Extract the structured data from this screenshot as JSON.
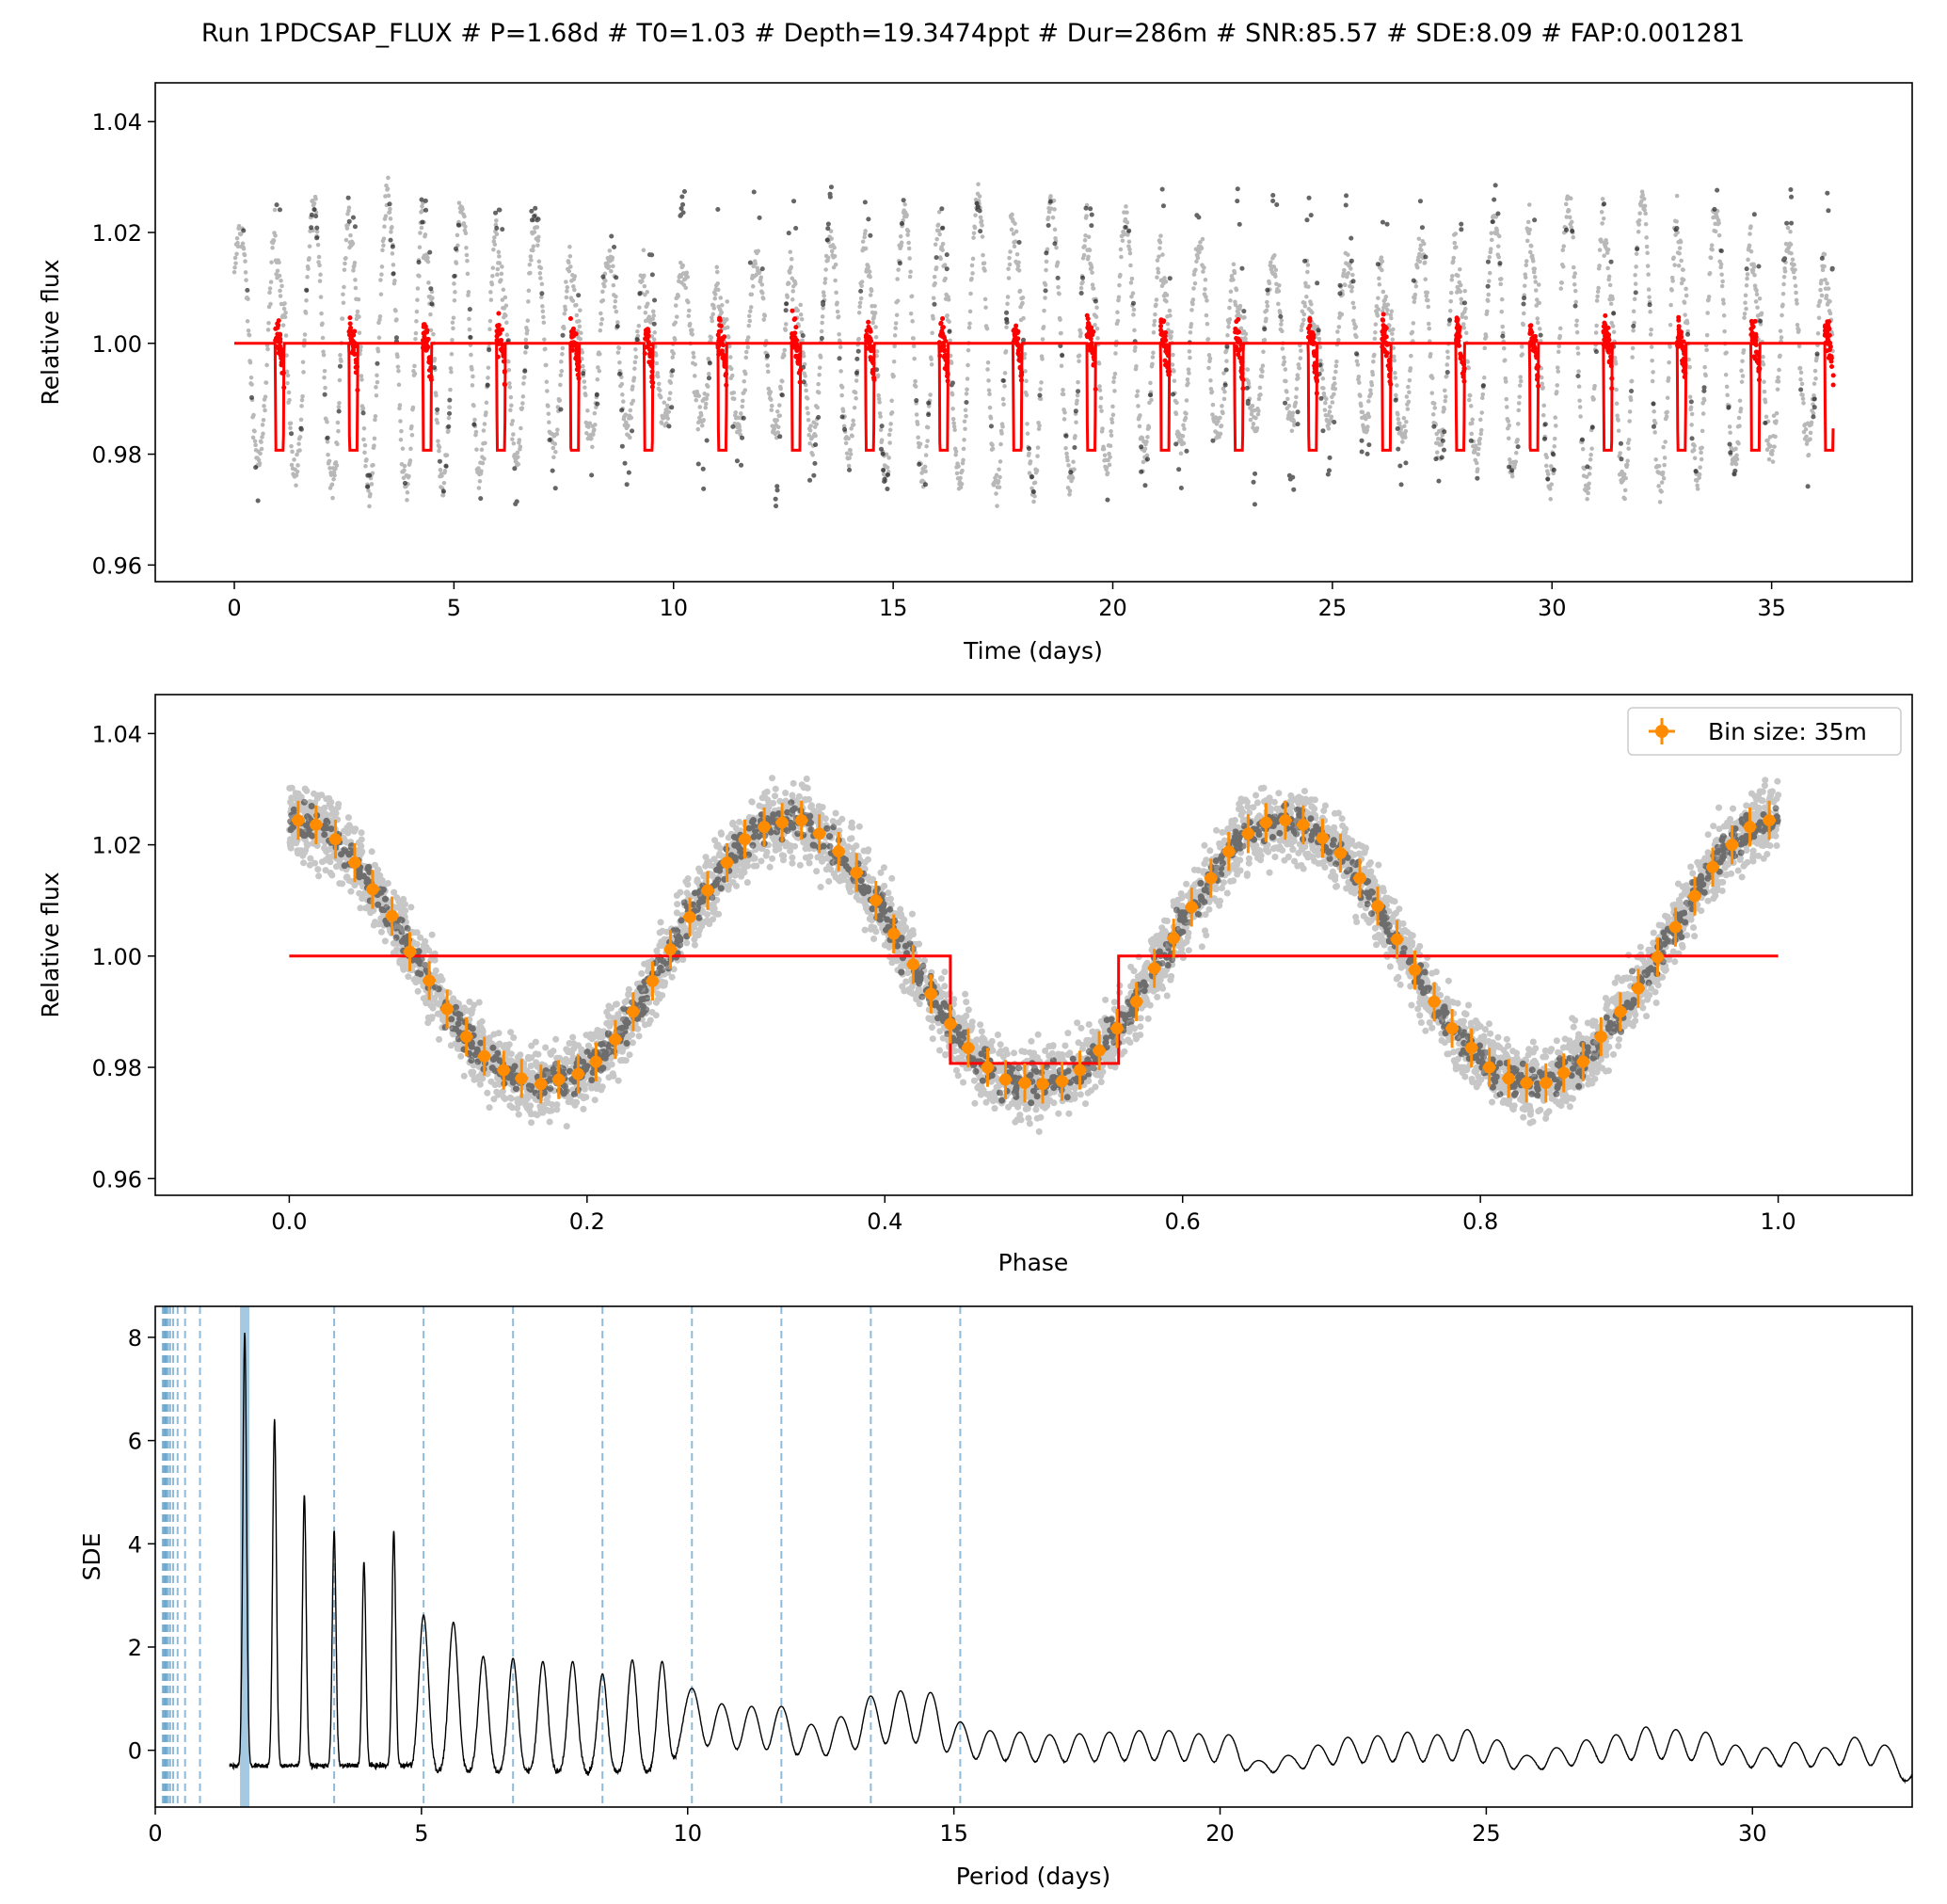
{
  "figure_title": "Run 1PDCSAP_FLUX # P=1.68d # T0=1.03 # Depth=19.3474ppt # Dur=286m # SNR:85.57 # SDE:8.09 # FAP:0.001281",
  "chart_data": [
    {
      "type": "scatter",
      "panel": "time-series",
      "xlabel": "Time (days)",
      "ylabel": "Relative flux",
      "xlim": [
        -1.8,
        38.2
      ],
      "ylim": [
        0.957,
        1.047
      ],
      "xticks": [
        "0",
        "5",
        "10",
        "15",
        "20",
        "25",
        "30",
        "35"
      ],
      "yticks": [
        "0.96",
        "0.98",
        "1.00",
        "1.02",
        "1.04"
      ],
      "grid": false,
      "series": [
        {
          "kind": "points",
          "color": "#000000",
          "x_range": [
            0,
            36.4
          ],
          "sinusoid_period_days": 0.84,
          "sinusoid_amplitude": 0.025,
          "baseline": 1.0
        },
        {
          "kind": "transit-model",
          "color": "#ff0000",
          "period_days": 1.68,
          "t0": 1.03,
          "duration_days": 0.199,
          "depth": 0.0193,
          "baseline": 1.0
        }
      ]
    },
    {
      "type": "scatter",
      "panel": "phase-folded",
      "xlabel": "Phase",
      "ylabel": "Relative flux",
      "xlim": [
        -0.09,
        1.09
      ],
      "ylim": [
        0.957,
        1.047
      ],
      "xticks": [
        "0.0",
        "0.2",
        "0.4",
        "0.6",
        "0.8",
        "1.0"
      ],
      "yticks": [
        "0.96",
        "0.98",
        "1.00",
        "1.02",
        "1.04"
      ],
      "legend": {
        "label": "Bin size: 35m",
        "placement": "top-right"
      },
      "grid": false,
      "series": [
        {
          "kind": "points",
          "color": "#000000"
        },
        {
          "kind": "model",
          "color": "#ff0000",
          "x": [
            0,
            0.444,
            0.444,
            0.557,
            0.557,
            1.0
          ],
          "y": [
            1.0,
            1.0,
            0.9807,
            0.9807,
            1.0,
            1.0
          ]
        },
        {
          "kind": "binned",
          "color": "#ff8c00",
          "name": "Bin size: 35m",
          "x": [
            0.006,
            0.018,
            0.031,
            0.044,
            0.056,
            0.069,
            0.081,
            0.094,
            0.106,
            0.119,
            0.131,
            0.144,
            0.156,
            0.169,
            0.181,
            0.194,
            0.206,
            0.219,
            0.231,
            0.244,
            0.256,
            0.269,
            0.281,
            0.294,
            0.306,
            0.319,
            0.331,
            0.344,
            0.356,
            0.369,
            0.381,
            0.394,
            0.406,
            0.419,
            0.431,
            0.444,
            0.456,
            0.469,
            0.481,
            0.494,
            0.506,
            0.519,
            0.531,
            0.544,
            0.556,
            0.569,
            0.581,
            0.594,
            0.606,
            0.619,
            0.631,
            0.644,
            0.656,
            0.669,
            0.681,
            0.694,
            0.706,
            0.719,
            0.731,
            0.744,
            0.756,
            0.769,
            0.781,
            0.794,
            0.806,
            0.819,
            0.831,
            0.844,
            0.856,
            0.869,
            0.881,
            0.894,
            0.906,
            0.919,
            0.931,
            0.944,
            0.956,
            0.969,
            0.981,
            0.994
          ],
          "y": [
            1.0244,
            1.0236,
            1.021,
            1.0168,
            1.012,
            1.0072,
            1.0008,
            0.9956,
            0.9905,
            0.9855,
            0.982,
            0.9795,
            0.978,
            0.977,
            0.9778,
            0.9788,
            0.981,
            0.985,
            0.99,
            0.9955,
            1.0012,
            1.007,
            1.0118,
            1.0168,
            1.021,
            1.0232,
            1.024,
            1.0244,
            1.022,
            1.0188,
            1.015,
            1.01,
            1.004,
            0.9985,
            0.9932,
            0.9878,
            0.9835,
            0.98,
            0.9778,
            0.9772,
            0.977,
            0.9775,
            0.9795,
            0.983,
            0.987,
            0.9918,
            0.9978,
            1.0032,
            1.0088,
            1.014,
            1.0188,
            1.022,
            1.024,
            1.0244,
            1.0236,
            1.0212,
            1.0185,
            1.014,
            1.009,
            1.003,
            0.9975,
            0.9918,
            0.987,
            0.9835,
            0.98,
            0.978,
            0.9772,
            0.9772,
            0.979,
            0.981,
            0.9855,
            0.99,
            0.9942,
            0.9998,
            1.0052,
            1.0108,
            1.016,
            1.02,
            1.0232,
            1.0244
          ],
          "yerr": 0.0035
        }
      ]
    },
    {
      "type": "line",
      "panel": "periodogram",
      "xlabel": "Period (days)",
      "ylabel": "SDE",
      "xlim": [
        0,
        33
      ],
      "ylim": [
        -1.1,
        8.6
      ],
      "xticks": [
        "0",
        "5",
        "10",
        "15",
        "20",
        "25",
        "30"
      ],
      "yticks": [
        "0",
        "2",
        "4",
        "6",
        "8"
      ],
      "grid": false,
      "best_period": 1.68,
      "harmonic_lines": [
        0.14,
        0.168,
        0.187,
        0.21,
        0.24,
        0.28,
        0.336,
        0.42,
        0.56,
        0.84,
        3.36,
        5.04,
        6.72,
        8.4,
        10.08,
        11.76,
        13.44,
        15.12
      ],
      "peaks": [
        [
          1.68,
          8.09
        ],
        [
          2.24,
          6.42
        ],
        [
          2.8,
          4.95
        ],
        [
          3.36,
          4.25
        ],
        [
          3.92,
          3.65
        ],
        [
          4.48,
          4.25
        ],
        [
          5.04,
          2.62
        ],
        [
          5.6,
          2.48
        ],
        [
          6.16,
          1.82
        ],
        [
          6.72,
          1.78
        ],
        [
          7.28,
          1.72
        ],
        [
          7.84,
          1.72
        ],
        [
          8.4,
          1.48
        ],
        [
          8.96,
          1.75
        ],
        [
          9.52,
          1.72
        ],
        [
          10.08,
          1.2
        ],
        [
          10.64,
          0.9
        ],
        [
          11.2,
          0.85
        ],
        [
          11.76,
          0.85
        ],
        [
          12.32,
          0.5
        ],
        [
          12.88,
          0.65
        ],
        [
          13.44,
          1.05
        ],
        [
          14.0,
          1.15
        ],
        [
          14.56,
          1.12
        ],
        [
          15.12,
          0.55
        ],
        [
          15.68,
          0.38
        ],
        [
          16.24,
          0.35
        ],
        [
          16.8,
          0.3
        ],
        [
          17.36,
          0.32
        ],
        [
          17.92,
          0.35
        ],
        [
          18.48,
          0.38
        ],
        [
          19.04,
          0.38
        ],
        [
          19.6,
          0.32
        ],
        [
          20.16,
          0.3
        ],
        [
          20.72,
          -0.2
        ],
        [
          21.28,
          -0.1
        ],
        [
          21.84,
          0.1
        ],
        [
          22.4,
          0.25
        ],
        [
          22.96,
          0.28
        ],
        [
          23.52,
          0.35
        ],
        [
          24.08,
          0.3
        ],
        [
          24.64,
          0.4
        ],
        [
          25.2,
          0.2
        ],
        [
          25.76,
          -0.1
        ],
        [
          26.32,
          0.05
        ],
        [
          26.88,
          0.2
        ],
        [
          27.44,
          0.3
        ],
        [
          28.0,
          0.45
        ],
        [
          28.56,
          0.4
        ],
        [
          29.12,
          0.35
        ],
        [
          29.68,
          0.1
        ],
        [
          30.24,
          0.05
        ],
        [
          30.8,
          0.15
        ],
        [
          31.36,
          0.05
        ],
        [
          31.92,
          0.25
        ],
        [
          32.48,
          0.1
        ]
      ]
    }
  ]
}
